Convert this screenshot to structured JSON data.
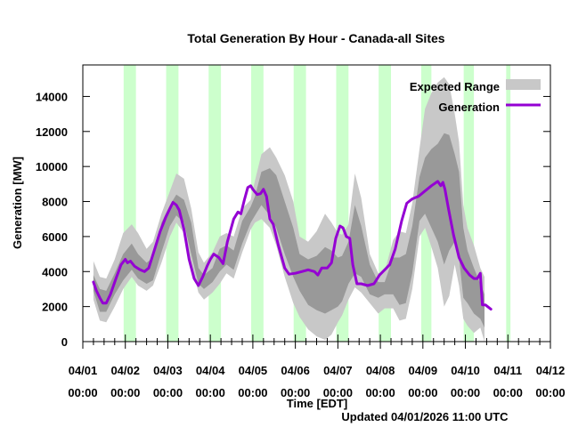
{
  "chart_data": {
    "type": "area",
    "title": "Total Generation By Hour - Canada-all Sites",
    "xlabel": "Time [EDT]",
    "ylabel": "Generation [MW]",
    "footer": "Updated 04/01/2026 11:00 UTC",
    "ylim": [
      0,
      15800
    ],
    "xlim_days": [
      0,
      11
    ],
    "y_ticks": [
      0,
      2000,
      4000,
      6000,
      8000,
      10000,
      12000,
      14000
    ],
    "x_ticks": [
      {
        "date": "04/01",
        "time": "00:00"
      },
      {
        "date": "04/02",
        "time": "00:00"
      },
      {
        "date": "04/03",
        "time": "00:00"
      },
      {
        "date": "04/04",
        "time": "00:00"
      },
      {
        "date": "04/05",
        "time": "00:00"
      },
      {
        "date": "04/06",
        "time": "00:00"
      },
      {
        "date": "04/07",
        "time": "00:00"
      },
      {
        "date": "04/08",
        "time": "00:00"
      },
      {
        "date": "04/09",
        "time": "00:00"
      },
      {
        "date": "04/10",
        "time": "00:00"
      },
      {
        "date": "04/11",
        "time": "00:00"
      },
      {
        "date": "04/12",
        "time": "00:00"
      }
    ],
    "minor_tick_hours": 6,
    "legend": {
      "placement": "top-right",
      "entries": [
        {
          "label": "Expected Range",
          "color": "#c8c8c8",
          "kind": "box"
        },
        {
          "label": "Generation",
          "color": "#9400d3",
          "kind": "line"
        }
      ]
    },
    "colors": {
      "outer_band": "#c8c8c8",
      "inner_band": "#999999",
      "line": "#9400d3",
      "night_band": "#ccffcc"
    },
    "night_bands_days": [
      [
        0.96,
        1.25
      ],
      [
        1.96,
        2.25
      ],
      [
        2.96,
        3.25
      ],
      [
        3.96,
        4.25
      ],
      [
        4.96,
        5.25
      ],
      [
        5.96,
        6.25
      ],
      [
        6.96,
        7.25
      ],
      [
        7.96,
        8.2
      ],
      [
        8.96,
        9.2
      ],
      [
        9.96,
        10.06
      ]
    ],
    "bands": {
      "columns": [
        "day",
        "outer_low",
        "inner_low",
        "inner_high",
        "outer_high"
      ],
      "rows": [
        [
          0.25,
          2400,
          2900,
          3800,
          4600
        ],
        [
          0.4,
          1200,
          1700,
          3000,
          3700
        ],
        [
          0.55,
          1100,
          1700,
          2900,
          3600
        ],
        [
          0.75,
          2000,
          2700,
          3900,
          4700
        ],
        [
          0.95,
          3000,
          3500,
          5000,
          6200
        ],
        [
          1.15,
          3700,
          4100,
          5600,
          6700
        ],
        [
          1.3,
          3200,
          3600,
          5000,
          6200
        ],
        [
          1.5,
          2900,
          3300,
          4500,
          5300
        ],
        [
          1.65,
          3200,
          3500,
          4800,
          5700
        ],
        [
          1.85,
          4500,
          5100,
          6800,
          7300
        ],
        [
          2.05,
          6000,
          6600,
          7800,
          8600
        ],
        [
          2.2,
          6800,
          7200,
          8400,
          9600
        ],
        [
          2.38,
          6200,
          6800,
          8100,
          9300
        ],
        [
          2.55,
          4400,
          5000,
          6800,
          7600
        ],
        [
          2.72,
          2800,
          3300,
          4200,
          5100
        ],
        [
          2.85,
          2400,
          3000,
          3800,
          4500
        ],
        [
          3.05,
          2800,
          3400,
          4200,
          5100
        ],
        [
          3.22,
          3300,
          4000,
          5300,
          6000
        ],
        [
          3.38,
          3900,
          4400,
          5500,
          6200
        ],
        [
          3.55,
          3600,
          4100,
          5200,
          6000
        ],
        [
          3.75,
          5100,
          5600,
          6900,
          7600
        ],
        [
          3.95,
          6400,
          6800,
          7700,
          8100
        ],
        [
          4.05,
          6800,
          7200,
          8300,
          9200
        ],
        [
          4.2,
          7000,
          7800,
          9700,
          10700
        ],
        [
          4.4,
          6500,
          7200,
          9900,
          11100
        ],
        [
          4.55,
          5500,
          6500,
          9500,
          10500
        ],
        [
          4.75,
          3700,
          5000,
          8000,
          9500
        ],
        [
          4.95,
          2200,
          3700,
          6500,
          8000
        ],
        [
          5.1,
          1400,
          2900,
          5000,
          6000
        ],
        [
          5.3,
          700,
          2100,
          4700,
          5700
        ],
        [
          5.5,
          300,
          1800,
          4900,
          6300
        ],
        [
          5.7,
          100,
          1600,
          5400,
          7300
        ],
        [
          5.85,
          400,
          1800,
          5200,
          6800
        ],
        [
          6.0,
          1100,
          2000,
          4800,
          6200
        ],
        [
          6.1,
          1500,
          2300,
          4900,
          6100
        ],
        [
          6.25,
          2400,
          3300,
          5700,
          6700
        ],
        [
          6.4,
          3100,
          3900,
          7800,
          9600
        ],
        [
          6.55,
          2800,
          3700,
          6600,
          8200
        ],
        [
          6.75,
          2200,
          2700,
          4400,
          5000
        ],
        [
          6.95,
          1600,
          2500,
          3400,
          3900
        ],
        [
          7.1,
          1900,
          2700,
          3400,
          4000
        ],
        [
          7.3,
          1900,
          2700,
          4800,
          5800
        ],
        [
          7.45,
          1200,
          2100,
          4800,
          6300
        ],
        [
          7.6,
          1300,
          2200,
          5000,
          6200
        ],
        [
          7.75,
          3000,
          3900,
          6600,
          7900
        ],
        [
          7.92,
          6000,
          6900,
          9400,
          11000
        ],
        [
          8.05,
          6500,
          7300,
          10500,
          13300
        ],
        [
          8.2,
          5400,
          6500,
          11000,
          14200
        ],
        [
          8.35,
          4200,
          5700,
          11300,
          14800
        ],
        [
          8.5,
          2000,
          4400,
          11900,
          15100
        ],
        [
          8.62,
          2600,
          5200,
          11800,
          14700
        ],
        [
          8.75,
          4400,
          5700,
          10700,
          13000
        ],
        [
          8.85,
          3200,
          4800,
          9700,
          11400
        ],
        [
          8.95,
          1300,
          2500,
          6500,
          7800
        ],
        [
          9.05,
          900,
          2200,
          5200,
          6500
        ],
        [
          9.2,
          500,
          1600,
          4200,
          5500
        ],
        [
          9.35,
          800,
          1300,
          3300,
          4200
        ],
        [
          9.45,
          0,
          800,
          2700,
          3700
        ]
      ]
    },
    "generation": {
      "columns": [
        "day",
        "mw"
      ],
      "rows": [
        [
          0.25,
          3400
        ],
        [
          0.32,
          2900
        ],
        [
          0.4,
          2500
        ],
        [
          0.47,
          2200
        ],
        [
          0.55,
          2200
        ],
        [
          0.65,
          2700
        ],
        [
          0.78,
          3600
        ],
        [
          0.9,
          4400
        ],
        [
          1.0,
          4700
        ],
        [
          1.05,
          4500
        ],
        [
          1.12,
          4600
        ],
        [
          1.22,
          4300
        ],
        [
          1.35,
          4100
        ],
        [
          1.45,
          4000
        ],
        [
          1.55,
          4200
        ],
        [
          1.68,
          5200
        ],
        [
          1.82,
          6300
        ],
        [
          1.95,
          7100
        ],
        [
          2.05,
          7600
        ],
        [
          2.12,
          7950
        ],
        [
          2.2,
          7800
        ],
        [
          2.27,
          7500
        ],
        [
          2.38,
          6400
        ],
        [
          2.5,
          4700
        ],
        [
          2.62,
          3600
        ],
        [
          2.72,
          3200
        ],
        [
          2.82,
          3700
        ],
        [
          2.92,
          4300
        ],
        [
          3.0,
          4700
        ],
        [
          3.08,
          5000
        ],
        [
          3.2,
          4800
        ],
        [
          3.3,
          4450
        ],
        [
          3.4,
          5700
        ],
        [
          3.55,
          7000
        ],
        [
          3.65,
          7400
        ],
        [
          3.72,
          7300
        ],
        [
          3.8,
          8100
        ],
        [
          3.88,
          8800
        ],
        [
          3.95,
          8900
        ],
        [
          4.0,
          8700
        ],
        [
          4.1,
          8400
        ],
        [
          4.18,
          8450
        ],
        [
          4.25,
          8700
        ],
        [
          4.32,
          8300
        ],
        [
          4.4,
          7000
        ],
        [
          4.48,
          6700
        ],
        [
          4.6,
          5500
        ],
        [
          4.75,
          4200
        ],
        [
          4.85,
          3850
        ],
        [
          5.0,
          3900
        ],
        [
          5.15,
          4000
        ],
        [
          5.3,
          4100
        ],
        [
          5.45,
          4000
        ],
        [
          5.53,
          3800
        ],
        [
          5.62,
          4200
        ],
        [
          5.75,
          4200
        ],
        [
          5.85,
          4500
        ],
        [
          5.95,
          5900
        ],
        [
          6.05,
          6600
        ],
        [
          6.12,
          6500
        ],
        [
          6.2,
          6000
        ],
        [
          6.28,
          5900
        ],
        [
          6.35,
          4400
        ],
        [
          6.45,
          3300
        ],
        [
          6.55,
          3300
        ],
        [
          6.7,
          3200
        ],
        [
          6.85,
          3300
        ],
        [
          6.98,
          3800
        ],
        [
          7.1,
          4100
        ],
        [
          7.22,
          4400
        ],
        [
          7.35,
          5300
        ],
        [
          7.5,
          6900
        ],
        [
          7.62,
          7900
        ],
        [
          7.75,
          8150
        ],
        [
          7.9,
          8300
        ],
        [
          8.05,
          8600
        ],
        [
          8.2,
          8900
        ],
        [
          8.35,
          9150
        ],
        [
          8.42,
          8900
        ],
        [
          8.47,
          9100
        ],
        [
          8.52,
          8700
        ],
        [
          8.6,
          7600
        ],
        [
          8.72,
          6100
        ],
        [
          8.85,
          4800
        ],
        [
          8.97,
          4200
        ],
        [
          9.1,
          3800
        ],
        [
          9.2,
          3600
        ],
        [
          9.28,
          3600
        ],
        [
          9.35,
          3900
        ],
        [
          9.4,
          2100
        ],
        [
          9.47,
          2100
        ],
        [
          9.52,
          2000
        ],
        [
          9.6,
          1850
        ]
      ]
    }
  }
}
